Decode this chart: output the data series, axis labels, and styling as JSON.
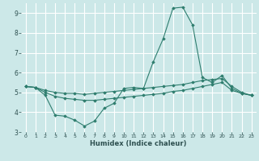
{
  "title": "",
  "xlabel": "Humidex (Indice chaleur)",
  "ylabel": "",
  "bg_color": "#cce8e8",
  "grid_color": "#ffffff",
  "line_color": "#2e7d6e",
  "xlim": [
    -0.5,
    23.5
  ],
  "ylim": [
    3,
    9.5
  ],
  "xticks": [
    0,
    1,
    2,
    3,
    4,
    5,
    6,
    7,
    8,
    9,
    10,
    11,
    12,
    13,
    14,
    15,
    16,
    17,
    18,
    19,
    20,
    21,
    22,
    23
  ],
  "yticks": [
    3,
    4,
    5,
    6,
    7,
    8,
    9
  ],
  "line1_x": [
    0,
    1,
    2,
    3,
    4,
    5,
    6,
    7,
    8,
    9,
    10,
    11,
    12,
    13,
    14,
    15,
    16,
    17,
    18,
    19,
    20,
    21,
    22,
    23
  ],
  "line1_y": [
    5.3,
    5.25,
    4.85,
    3.85,
    3.8,
    3.6,
    3.3,
    3.55,
    4.2,
    4.45,
    5.2,
    5.25,
    5.2,
    6.55,
    7.7,
    9.25,
    9.3,
    8.4,
    5.75,
    5.5,
    5.85,
    5.2,
    4.95,
    4.85
  ],
  "line2_x": [
    0,
    1,
    2,
    3,
    4,
    5,
    6,
    7,
    8,
    9,
    10,
    11,
    12,
    13,
    14,
    15,
    16,
    17,
    18,
    19,
    20,
    21,
    22,
    23
  ],
  "line2_y": [
    5.3,
    5.25,
    5.1,
    5.0,
    4.95,
    4.95,
    4.9,
    4.95,
    5.0,
    5.05,
    5.1,
    5.15,
    5.2,
    5.25,
    5.3,
    5.35,
    5.4,
    5.5,
    5.6,
    5.65,
    5.7,
    5.3,
    5.0,
    4.85
  ],
  "line3_x": [
    0,
    1,
    2,
    3,
    4,
    5,
    6,
    7,
    8,
    9,
    10,
    11,
    12,
    13,
    14,
    15,
    16,
    17,
    18,
    19,
    20,
    21,
    22,
    23
  ],
  "line3_y": [
    5.3,
    5.25,
    5.0,
    4.8,
    4.7,
    4.65,
    4.6,
    4.6,
    4.65,
    4.7,
    4.75,
    4.8,
    4.85,
    4.9,
    4.95,
    5.05,
    5.1,
    5.2,
    5.3,
    5.4,
    5.5,
    5.1,
    4.95,
    4.85
  ]
}
